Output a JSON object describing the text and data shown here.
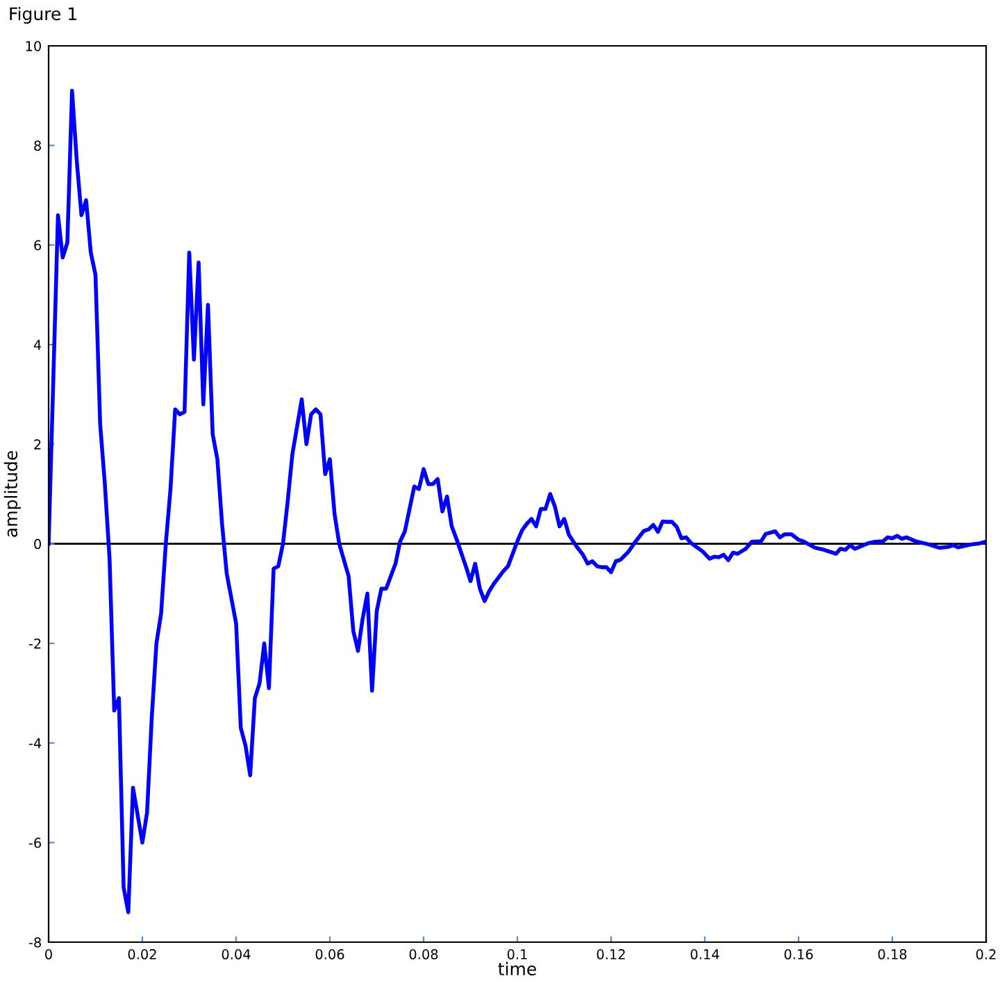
{
  "chart_data": {
    "type": "line",
    "title": "Figure 1",
    "xlabel": "time",
    "ylabel": "amplitude",
    "xlim": [
      0,
      0.2
    ],
    "xticks": [
      0,
      0.02,
      0.04,
      0.06,
      0.08,
      0.1,
      0.12,
      0.14,
      0.16,
      0.18,
      0.2
    ],
    "ylim": [
      -8,
      10
    ],
    "yticks": [
      -8,
      -6,
      -4,
      -2,
      0,
      2,
      4,
      6,
      8,
      10
    ],
    "grid": false,
    "legend": false,
    "marker": "none",
    "line_style": "solid",
    "ref_lines": [
      {
        "axis": "y",
        "value": 0,
        "color": "#000000",
        "line_style": "solid"
      }
    ],
    "series": [
      {
        "color": "#0000ff",
        "x": [
          0,
          0.002,
          0.003,
          0.004,
          0.005,
          0.006,
          0.007,
          0.008,
          0.009,
          0.01,
          0.011,
          0.012,
          0.013,
          0.014,
          0.015,
          0.016,
          0.017,
          0.018,
          0.02,
          0.021,
          0.022,
          0.023,
          0.024,
          0.025,
          0.026,
          0.027,
          0.028,
          0.029,
          0.03,
          0.031,
          0.032,
          0.033,
          0.034,
          0.035,
          0.036,
          0.037,
          0.038,
          0.04,
          0.041,
          0.042,
          0.043,
          0.044,
          0.045,
          0.046,
          0.047,
          0.048,
          0.049,
          0.05,
          0.051,
          0.052,
          0.054,
          0.055,
          0.056,
          0.057,
          0.058,
          0.059,
          0.06,
          0.061,
          0.062,
          0.064,
          0.065,
          0.066,
          0.067,
          0.068,
          0.069,
          0.07,
          0.071,
          0.072,
          0.074,
          0.075,
          0.076,
          0.078,
          0.079,
          0.08,
          0.081,
          0.082,
          0.083,
          0.084,
          0.085,
          0.086,
          0.087,
          0.089,
          0.09,
          0.091,
          0.092,
          0.093,
          0.094,
          0.095,
          0.097,
          0.098,
          0.099,
          0.1,
          0.101,
          0.102,
          0.103,
          0.104,
          0.105,
          0.106,
          0.107,
          0.108,
          0.109,
          0.11,
          0.111,
          0.1126,
          0.114,
          0.115,
          0.116,
          0.117,
          0.118,
          0.119,
          0.12,
          0.121,
          0.122,
          0.1235,
          0.124,
          0.125,
          0.127,
          0.128,
          0.129,
          0.13,
          0.131,
          0.132,
          0.133,
          0.134,
          0.135,
          0.136,
          0.137,
          0.138,
          0.1395,
          0.141,
          0.142,
          0.143,
          0.144,
          0.145,
          0.146,
          0.147,
          0.1487,
          0.15,
          0.152,
          0.153,
          0.155,
          0.156,
          0.157,
          0.1585,
          0.16,
          0.161,
          0.1635,
          0.1654,
          0.168,
          0.1689,
          0.17,
          0.171,
          0.172,
          0.1748,
          0.1763,
          0.178,
          0.179,
          0.18,
          0.181,
          0.182,
          0.183,
          0.185,
          0.1877,
          0.19,
          0.192,
          0.193,
          0.194,
          0.197,
          0.1987,
          0.1998
        ],
        "values": [
          0,
          6.6,
          5.75,
          6.05,
          9.1,
          7.7,
          6.6,
          6.9,
          5.85,
          5.4,
          2.4,
          1.2,
          -0.3,
          -3.35,
          -3.1,
          -6.9,
          -7.4,
          -4.9,
          -6.0,
          -5.4,
          -3.5,
          -2.0,
          -1.4,
          0,
          1.1,
          2.7,
          2.6,
          2.65,
          5.85,
          3.7,
          5.65,
          2.8,
          4.8,
          2.2,
          1.7,
          0.4,
          -0.6,
          -1.6,
          -3.7,
          -4.05,
          -4.65,
          -3.1,
          -2.8,
          -2.0,
          -2.9,
          -0.5,
          -0.45,
          0,
          0.85,
          1.8,
          2.9,
          2.0,
          2.6,
          2.7,
          2.6,
          1.4,
          1.7,
          0.6,
          0,
          -0.65,
          -1.75,
          -2.15,
          -1.5,
          -1.0,
          -2.95,
          -1.35,
          -0.9,
          -0.9,
          -0.4,
          0.05,
          0.25,
          1.15,
          1.1,
          1.5,
          1.2,
          1.2,
          1.3,
          0.65,
          0.95,
          0.35,
          0.1,
          -0.45,
          -0.75,
          -0.4,
          -0.9,
          -1.15,
          -0.95,
          -0.8,
          -0.55,
          -0.45,
          -0.2,
          0.05,
          0.27,
          0.4,
          0.5,
          0.35,
          0.7,
          0.7,
          1.0,
          0.75,
          0.35,
          0.5,
          0.18,
          -0.05,
          -0.22,
          -0.4,
          -0.35,
          -0.45,
          -0.47,
          -0.47,
          -0.57,
          -0.35,
          -0.32,
          -0.18,
          -0.12,
          0.02,
          0.26,
          0.29,
          0.38,
          0.24,
          0.45,
          0.44,
          0.44,
          0.34,
          0.11,
          0.13,
          0.02,
          -0.05,
          -0.15,
          -0.3,
          -0.26,
          -0.27,
          -0.22,
          -0.33,
          -0.18,
          -0.2,
          -0.1,
          0.04,
          0.05,
          0.2,
          0.25,
          0.13,
          0.19,
          0.19,
          0.08,
          0.05,
          -0.08,
          -0.12,
          -0.2,
          -0.1,
          -0.12,
          -0.03,
          -0.1,
          0.01,
          0.04,
          0.05,
          0.13,
          0.11,
          0.16,
          0.1,
          0.13,
          0.05,
          -0.01,
          -0.08,
          -0.06,
          -0.03,
          -0.07,
          -0.01,
          0.01,
          0.04
        ]
      }
    ]
  }
}
